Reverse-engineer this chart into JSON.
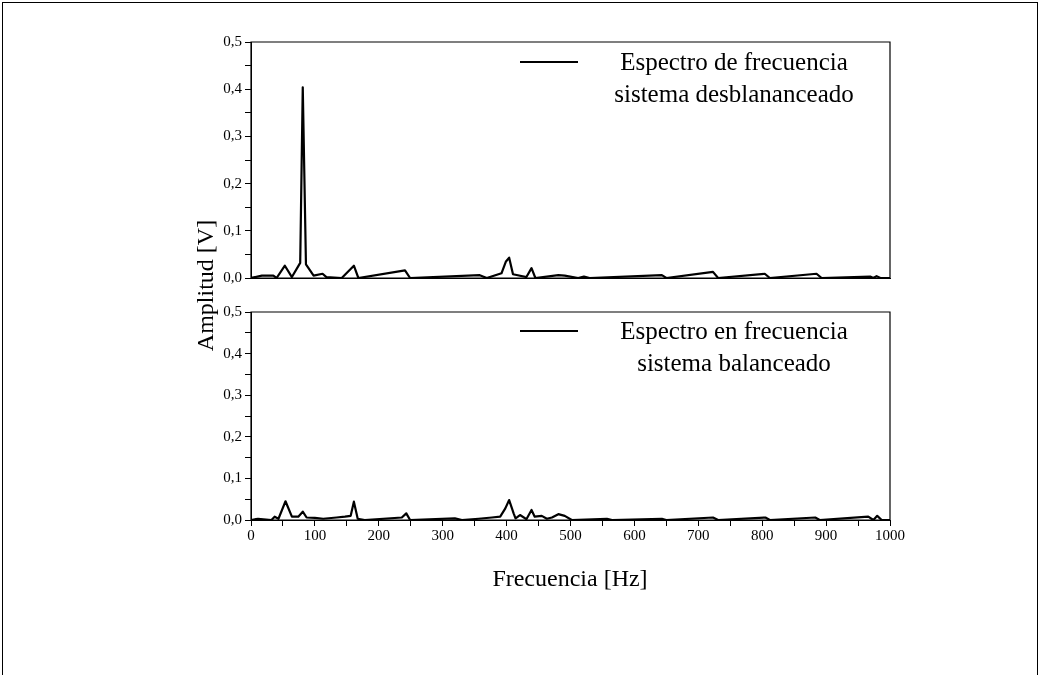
{
  "chart_data": [
    {
      "type": "line",
      "ylabel": "Amplitud [V]",
      "xlim": [
        0,
        1000
      ],
      "ylim": [
        0,
        0.5
      ],
      "yticks": [
        {
          "value": 0,
          "label": "0,0"
        },
        {
          "value": 0.05,
          "label": null
        },
        {
          "value": 0.1,
          "label": "0,1"
        },
        {
          "value": 0.15,
          "label": null
        },
        {
          "value": 0.2,
          "label": "0,2"
        },
        {
          "value": 0.25,
          "label": null
        },
        {
          "value": 0.3,
          "label": "0,3"
        },
        {
          "value": 0.35,
          "label": null
        },
        {
          "value": 0.4,
          "label": "0,4"
        },
        {
          "value": 0.45,
          "label": null
        },
        {
          "value": 0.5,
          "label": "0,5"
        }
      ],
      "tick_labels": "y",
      "grid": false,
      "legend": "top right",
      "marker": "none",
      "line_style": "solid",
      "series": [
        {
          "name": "Espectro de frecuencia sistema desblananceado",
          "color": "#000000",
          "x": [
            0,
            17,
            35,
            40,
            53,
            64,
            77,
            81,
            86,
            98,
            112,
            118,
            142,
            161,
            168,
            241,
            249,
            358,
            369,
            392,
            399,
            404,
            410,
            431,
            439,
            445,
            481,
            491,
            512,
            521,
            530,
            643,
            650,
            723,
            731,
            804,
            812,
            885,
            893,
            969,
            974,
            979,
            985,
            1000
          ],
          "values": [
            0,
            0.005,
            0.005,
            0,
            0.026,
            0.002,
            0.032,
            0.404,
            0.029,
            0.005,
            0.009,
            0.002,
            0,
            0.026,
            0,
            0.016,
            0,
            0.006,
            0,
            0.01,
            0.035,
            0.043,
            0.008,
            0.002,
            0.021,
            0,
            0.006,
            0.005,
            0,
            0.003,
            0,
            0.006,
            0,
            0.013,
            0,
            0.009,
            0,
            0.009,
            0,
            0.003,
            0,
            0.004,
            0,
            0
          ]
        }
      ]
    },
    {
      "type": "line",
      "xlabel": "Frecuencia [Hz]",
      "xlim": [
        0,
        1000
      ],
      "ylim": [
        0,
        0.5
      ],
      "xticks": [
        0,
        {
          "value": 50,
          "label": null
        },
        100,
        {
          "value": 150,
          "label": null
        },
        200,
        {
          "value": 250,
          "label": null
        },
        300,
        {
          "value": 350,
          "label": null
        },
        400,
        {
          "value": 450,
          "label": null
        },
        500,
        {
          "value": 550,
          "label": null
        },
        600,
        {
          "value": 650,
          "label": null
        },
        700,
        {
          "value": 750,
          "label": null
        },
        800,
        {
          "value": 850,
          "label": null
        },
        900,
        {
          "value": 950,
          "label": null
        },
        1000
      ],
      "yticks": [
        {
          "value": 0,
          "label": "0,0"
        },
        {
          "value": 0.05,
          "label": null
        },
        {
          "value": 0.1,
          "label": "0,1"
        },
        {
          "value": 0.15,
          "label": null
        },
        {
          "value": 0.2,
          "label": "0,2"
        },
        {
          "value": 0.25,
          "label": null
        },
        {
          "value": 0.3,
          "label": "0,3"
        },
        {
          "value": 0.35,
          "label": null
        },
        {
          "value": 0.4,
          "label": "0,4"
        },
        {
          "value": 0.45,
          "label": null
        },
        {
          "value": 0.5,
          "label": "0,5"
        }
      ],
      "grid": false,
      "legend": "top right",
      "marker": "none",
      "line_style": "solid",
      "series": [
        {
          "name": "Espectro en frecuencia sistema balanceado",
          "color": "#000000",
          "x": [
            0,
            11,
            32,
            37,
            43,
            54,
            64,
            74,
            81,
            87,
            100,
            113,
            134,
            147,
            156,
            161,
            167,
            178,
            236,
            243,
            249,
            319,
            330,
            356,
            377,
            390,
            398,
            404,
            411,
            414,
            421,
            431,
            439,
            444,
            455,
            463,
            471,
            481,
            491,
            502,
            557,
            565,
            643,
            650,
            723,
            731,
            805,
            812,
            883,
            890,
            966,
            974,
            980,
            987,
            1000
          ],
          "values": [
            0,
            0.003,
            0,
            0.008,
            0.003,
            0.045,
            0.008,
            0.008,
            0.02,
            0.006,
            0.005,
            0.003,
            0.006,
            0.008,
            0.01,
            0.044,
            0.003,
            0,
            0.006,
            0.016,
            0,
            0.004,
            0,
            0.003,
            0.006,
            0.008,
            0.028,
            0.048,
            0.016,
            0.004,
            0.012,
            0.002,
            0.024,
            0.008,
            0.01,
            0.003,
            0.006,
            0.014,
            0.01,
            0,
            0.003,
            0,
            0.003,
            0,
            0.006,
            0,
            0.006,
            0,
            0.006,
            0,
            0.008,
            0,
            0.01,
            0,
            0
          ]
        }
      ]
    }
  ]
}
